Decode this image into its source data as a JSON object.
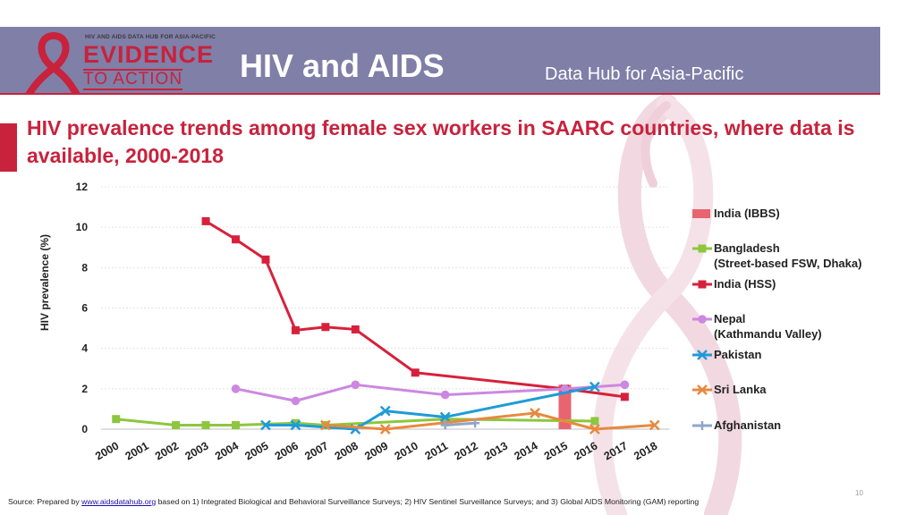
{
  "header": {
    "logo_top": "HIV AND AIDS DATA HUB FOR ASIA-PACIFIC",
    "logo_main": "EVIDENCE",
    "logo_sub": "TO ACTION",
    "title": "HIV and AIDS",
    "subtitle": "Data Hub for Asia-Pacific"
  },
  "colors": {
    "header_bg": "#7f7fa8",
    "accent": "#c8223c"
  },
  "footer": {
    "source_prefix": "Source: Prepared by ",
    "source_link": "www.aidsdatahub.org",
    "source_suffix": " based on 1) Integrated Biological and Behavioral Surveillance Surveys; 2) HIV Sentinel Surveillance Surveys; and 3) Global AIDS Monitoring (GAM) reporting",
    "page_number": "10"
  },
  "chart_data": {
    "type": "line",
    "title": "HIV prevalence trends among female sex workers in SAARC countries, where data is available, 2000-2018",
    "xlabel": "",
    "ylabel": "HIV prevalence (%)",
    "ylim": [
      0,
      12
    ],
    "yticks": [
      0,
      2,
      4,
      6,
      8,
      10,
      12
    ],
    "categories": [
      "2000",
      "2001",
      "2002",
      "2003",
      "2004",
      "2005",
      "2006",
      "2007",
      "2008",
      "2009",
      "2010",
      "2011",
      "2012",
      "2013",
      "2014",
      "2015",
      "2016",
      "2017",
      "2018"
    ],
    "grid": true,
    "legend_position": "right",
    "series": [
      {
        "name": "India (IBBS)",
        "chart": "bar",
        "color": "#e8646f",
        "marker": "square",
        "points": [
          [
            "2015",
            2.2
          ]
        ]
      },
      {
        "name": "Bangladesh (Street-based FSW, Dhaka)",
        "legend_lines": [
          "Bangladesh",
          "(Street-based FSW, Dhaka)"
        ],
        "color": "#8dc63f",
        "marker": "square",
        "points": [
          [
            "2000",
            0.5
          ],
          [
            "2002",
            0.2
          ],
          [
            "2003",
            0.2
          ],
          [
            "2004",
            0.2
          ],
          [
            "2006",
            0.3
          ],
          [
            "2007",
            0.2
          ],
          [
            "2011",
            0.5
          ],
          [
            "2016",
            0.4
          ]
        ]
      },
      {
        "name": "India (HSS)",
        "color": "#d7213c",
        "marker": "square",
        "points": [
          [
            "2003",
            10.3
          ],
          [
            "2004",
            9.4
          ],
          [
            "2005",
            8.4
          ],
          [
            "2006",
            4.9
          ],
          [
            "2007",
            5.06
          ],
          [
            "2008",
            4.94
          ],
          [
            "2010",
            2.8
          ],
          [
            "2015",
            2.0
          ],
          [
            "2017",
            1.6
          ]
        ]
      },
      {
        "name": "Nepal (Kathmandu Valley)",
        "legend_lines": [
          "Nepal",
          "(Kathmandu Valley)"
        ],
        "color": "#cc88e0",
        "marker": "circle",
        "points": [
          [
            "2004",
            2.0
          ],
          [
            "2006",
            1.4
          ],
          [
            "2008",
            2.2
          ],
          [
            "2011",
            1.7
          ],
          [
            "2015",
            2.0
          ],
          [
            "2017",
            2.2
          ]
        ]
      },
      {
        "name": "Pakistan",
        "color": "#1f9bd7",
        "marker": "x",
        "points": [
          [
            "2005",
            0.2
          ],
          [
            "2006",
            0.2
          ],
          [
            "2008",
            0.0
          ],
          [
            "2009",
            0.9
          ],
          [
            "2011",
            0.6
          ],
          [
            "2016",
            2.1
          ]
        ]
      },
      {
        "name": "Sri Lanka",
        "color": "#e8893f",
        "marker": "x",
        "points": [
          [
            "2007",
            0.2
          ],
          [
            "2009",
            0.0
          ],
          [
            "2014",
            0.8
          ],
          [
            "2016",
            0.0
          ],
          [
            "2018",
            0.2
          ]
        ]
      },
      {
        "name": "Afghanistan",
        "color": "#8ea6c9",
        "marker": "plus",
        "points": [
          [
            "2011",
            0.2
          ],
          [
            "2012",
            0.3
          ]
        ]
      }
    ]
  }
}
